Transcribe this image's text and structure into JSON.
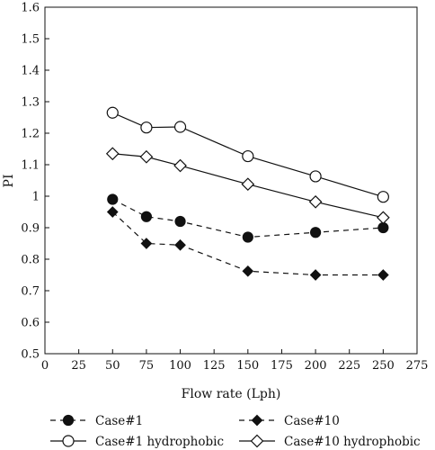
{
  "chart_data": {
    "type": "line",
    "xlabel": "Flow rate (Lph)",
    "ylabel": "PI",
    "xlim": [
      0,
      275
    ],
    "ylim": [
      0.5,
      1.6
    ],
    "xticks": [
      0,
      25,
      50,
      75,
      100,
      125,
      150,
      175,
      200,
      225,
      250,
      275
    ],
    "yticks": [
      0.5,
      0.6,
      0.7,
      0.8,
      0.9,
      1,
      1.1,
      1.2,
      1.3,
      1.4,
      1.5,
      1.6
    ],
    "ytick_labels": [
      "0.5",
      "0.6",
      "0.7",
      "0.8",
      "0.9",
      "1",
      "1.1",
      "1.2",
      "1.3",
      "1.4",
      "1.5",
      "1.6"
    ],
    "grid": false,
    "legend_position": "bottom",
    "x": [
      50,
      75,
      100,
      150,
      200,
      250
    ],
    "series": [
      {
        "name": "Case#1",
        "marker": "circle-filled",
        "line": "dashed",
        "values": [
          0.99,
          0.935,
          0.92,
          0.87,
          0.885,
          0.9
        ]
      },
      {
        "name": "Case#10",
        "marker": "diamond-filled",
        "line": "dashed",
        "values": [
          0.95,
          0.85,
          0.845,
          0.762,
          0.75,
          0.75
        ]
      },
      {
        "name": "Case#1 hydrophobic",
        "marker": "circle-open",
        "line": "solid",
        "values": [
          1.265,
          1.218,
          1.22,
          1.127,
          1.063,
          0.998
        ]
      },
      {
        "name": "Case#10 hydrophobic",
        "marker": "diamond-open",
        "line": "solid",
        "values": [
          1.135,
          1.125,
          1.097,
          1.038,
          0.982,
          0.932
        ]
      }
    ]
  }
}
